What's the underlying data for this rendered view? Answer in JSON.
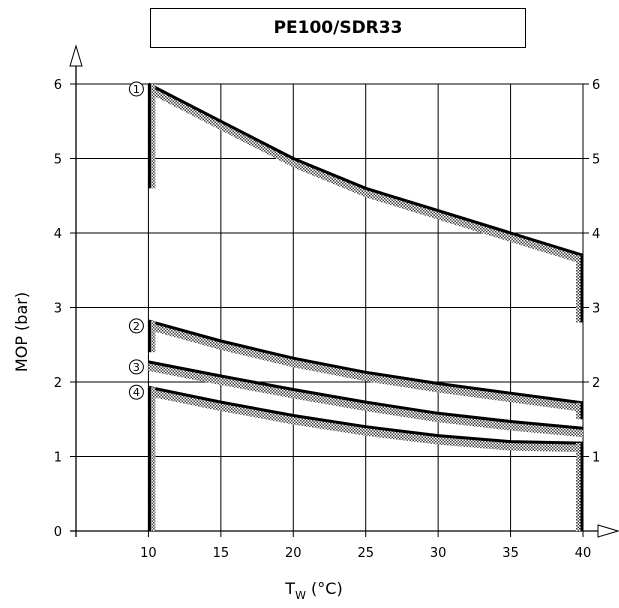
{
  "chart_data": {
    "type": "line",
    "title": "PE100/SDR33",
    "xlabel": {
      "main": "T",
      "sub": "W",
      "unit": " (°C)"
    },
    "ylabel": "MOP (bar)",
    "xlim": [
      5,
      40
    ],
    "ylim": [
      0,
      6
    ],
    "xticks": [
      10,
      15,
      20,
      25,
      30,
      35,
      40
    ],
    "yticks": [
      0,
      1,
      2,
      3,
      4,
      5,
      6
    ],
    "grid": true,
    "series": [
      {
        "name": "①",
        "x": [
          10,
          15,
          20,
          25,
          30,
          35,
          40
        ],
        "y": [
          6.0,
          5.5,
          5.0,
          4.6,
          4.3,
          4.0,
          3.7
        ],
        "left_drop": 4.6,
        "right_drop": 2.8
      },
      {
        "name": "②",
        "x": [
          10,
          15,
          20,
          25,
          30,
          35,
          40
        ],
        "y": [
          2.82,
          2.55,
          2.32,
          2.13,
          1.98,
          1.85,
          1.72
        ],
        "left_drop": 2.4,
        "right_drop": 1.5
      },
      {
        "name": "③",
        "x": [
          10,
          15,
          20,
          25,
          30,
          35,
          40
        ],
        "y": [
          2.27,
          2.08,
          1.9,
          1.73,
          1.58,
          1.47,
          1.38
        ],
        "left_drop": null,
        "right_drop": null
      },
      {
        "name": "④",
        "x": [
          10,
          15,
          20,
          25,
          30,
          35,
          40
        ],
        "y": [
          1.93,
          1.73,
          1.55,
          1.4,
          1.28,
          1.2,
          1.18
        ],
        "left_drop": 0,
        "right_drop": 0
      }
    ]
  }
}
